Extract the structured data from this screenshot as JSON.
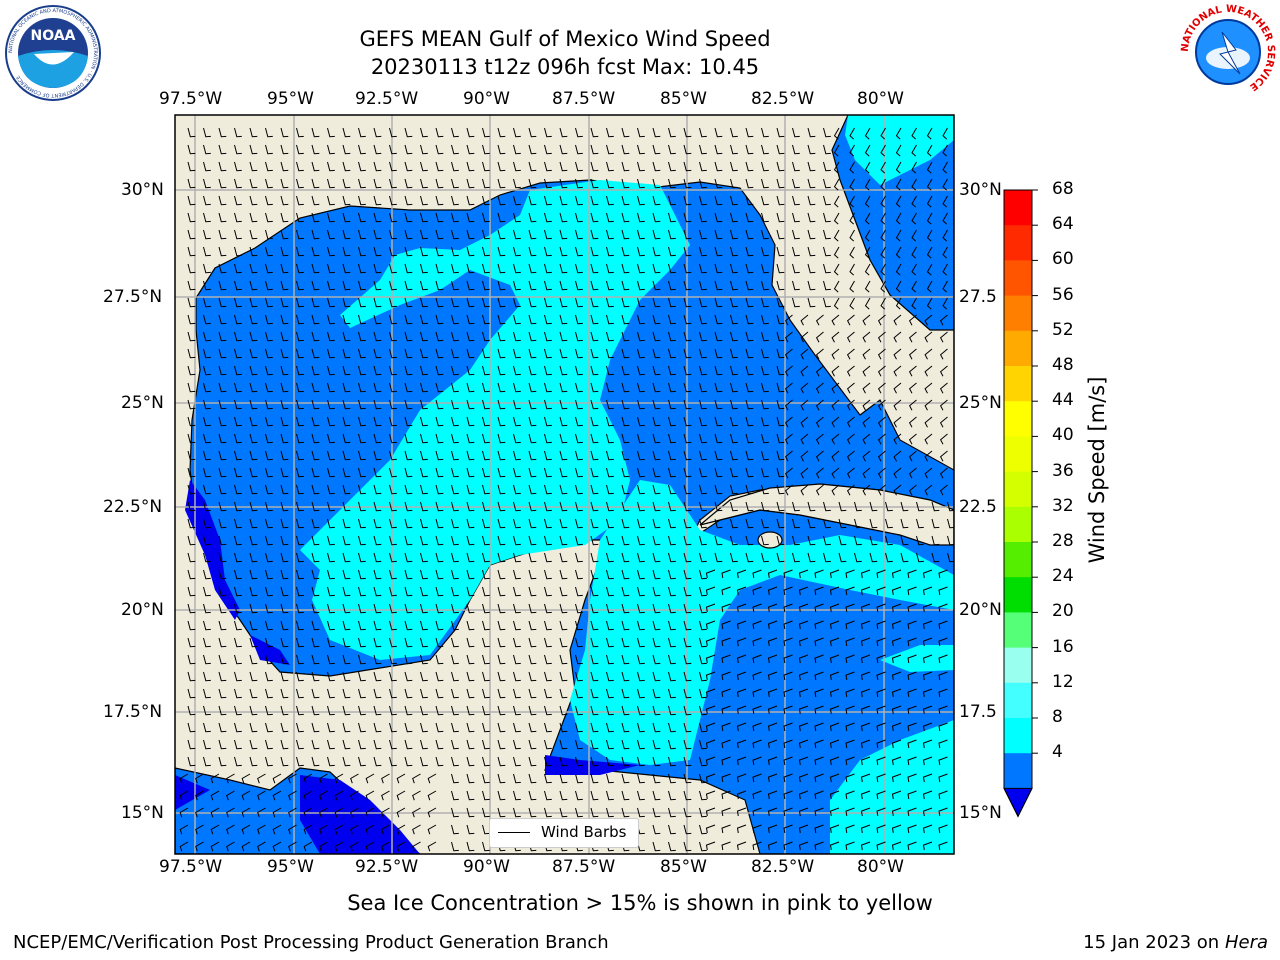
{
  "title_line1": "GEFS MEAN Gulf of Mexico Wind Speed",
  "title_line2": "20230113 t12z 096h fcst   Max: 10.45",
  "lon_labels": [
    "97.5°W",
    "95°W",
    "92.5°W",
    "90°W",
    "87.5°W",
    "85°W",
    "82.5°W",
    "80°W"
  ],
  "lat_labels_left": [
    "30°N",
    "27.5°N",
    "25°N",
    "22.5°N",
    "20°N",
    "17.5°N",
    "15°N"
  ],
  "lat_labels_right": [
    "30°N",
    "27.5",
    "25°N",
    "22.5",
    "20°N",
    "17.5",
    "15°N"
  ],
  "colorbar": {
    "label": "Wind Speed [m/s]",
    "ticks": [
      "68",
      "64",
      "60",
      "56",
      "52",
      "48",
      "44",
      "40",
      "36",
      "32",
      "28",
      "24",
      "20",
      "16",
      "12",
      "8",
      "4"
    ],
    "colors": [
      "#ff0000",
      "#ff2a00",
      "#ff5500",
      "#ff8000",
      "#ffaa00",
      "#ffd400",
      "#ffff00",
      "#eeff00",
      "#d4ff00",
      "#aaff00",
      "#55ee00",
      "#00dd00",
      "#55ff77",
      "#99ffee",
      "#44ffff",
      "#00ffff",
      "#0077ff"
    ],
    "extend_color": "#0000ee"
  },
  "legend_label": "Wind Barbs",
  "subtitle": "Sea Ice Concentration > 15% is shown in pink to yellow",
  "footer_left": "NCEP/EMC/Verification Post Processing Product Generation Branch",
  "footer_right_prefix": "15 Jan 2023 on ",
  "footer_right_machine": "Hera",
  "logos": {
    "noaa_text": "NOAA",
    "noaa_ring": "NATIONAL OCEANIC AND ATMOSPHERIC ADMINISTRATION · U.S. DEPARTMENT OF COMMERCE",
    "nws_ring": "NATIONAL WEATHER SERVICE"
  },
  "map_colors": {
    "land": "#efecdc",
    "water_blue": "#0077ff",
    "water_cyan": "#00ffff",
    "water_dark": "#0000ee",
    "grid": "#b0b0b0"
  }
}
